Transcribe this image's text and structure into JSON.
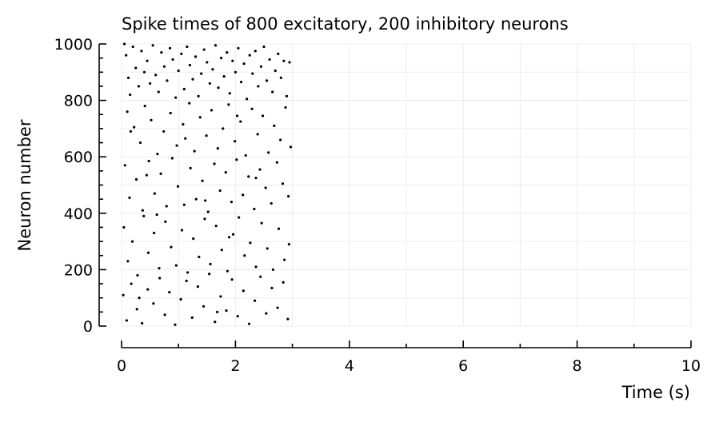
{
  "chart_data": {
    "type": "scatter",
    "title": "Spike times of 800 excitatory, 200 inhibitory neurons",
    "xlabel": "Time (s)",
    "ylabel": "Neuron number",
    "xlim": [
      0,
      10
    ],
    "ylim": [
      0,
      1000
    ],
    "xticks": [
      0,
      2,
      4,
      6,
      8,
      10
    ],
    "yticks": [
      0,
      200,
      400,
      600,
      800,
      1000
    ],
    "grid": true,
    "marker_color": "#000000",
    "series": [
      {
        "values": [
          [
            0.05,
            1000
          ],
          [
            0.08,
            960
          ],
          [
            0.12,
            880
          ],
          [
            0.15,
            820
          ],
          [
            0.2,
            990
          ],
          [
            0.25,
            915
          ],
          [
            0.3,
            850
          ],
          [
            0.35,
            975
          ],
          [
            0.4,
            900
          ],
          [
            0.45,
            940
          ],
          [
            0.5,
            860
          ],
          [
            0.55,
            995
          ],
          [
            0.6,
            890
          ],
          [
            0.65,
            830
          ],
          [
            0.7,
            970
          ],
          [
            0.75,
            920
          ],
          [
            0.8,
            870
          ],
          [
            0.85,
            985
          ],
          [
            0.9,
            945
          ],
          [
            0.95,
            810
          ],
          [
            1.0,
            905
          ],
          [
            1.05,
            965
          ],
          [
            1.1,
            840
          ],
          [
            1.15,
            990
          ],
          [
            1.2,
            925
          ],
          [
            1.25,
            875
          ],
          [
            1.3,
            955
          ],
          [
            1.35,
            815
          ],
          [
            1.4,
            895
          ],
          [
            1.45,
            980
          ],
          [
            1.5,
            935
          ],
          [
            1.55,
            860
          ],
          [
            1.6,
            910
          ],
          [
            1.65,
            995
          ],
          [
            1.7,
            845
          ],
          [
            1.75,
            950
          ],
          [
            1.8,
            885
          ],
          [
            1.85,
            970
          ],
          [
            1.9,
            825
          ],
          [
            1.95,
            940
          ],
          [
            2.0,
            900
          ],
          [
            2.05,
            985
          ],
          [
            2.1,
            865
          ],
          [
            2.15,
            930
          ],
          [
            2.2,
            805
          ],
          [
            2.25,
            960
          ],
          [
            2.3,
            895
          ],
          [
            2.35,
            975
          ],
          [
            2.4,
            850
          ],
          [
            2.45,
            920
          ],
          [
            2.5,
            990
          ],
          [
            2.55,
            870
          ],
          [
            2.6,
            945
          ],
          [
            2.65,
            830
          ],
          [
            2.7,
            905
          ],
          [
            2.75,
            965
          ],
          [
            2.8,
            880
          ],
          [
            2.85,
            940
          ],
          [
            2.9,
            815
          ],
          [
            2.95,
            935
          ],
          [
            0.1,
            760
          ],
          [
            0.22,
            705
          ],
          [
            0.33,
            650
          ],
          [
            0.41,
            780
          ],
          [
            0.52,
            730
          ],
          [
            0.63,
            610
          ],
          [
            0.74,
            690
          ],
          [
            0.86,
            755
          ],
          [
            0.97,
            640
          ],
          [
            1.08,
            715
          ],
          [
            1.19,
            790
          ],
          [
            1.28,
            620
          ],
          [
            1.38,
            740
          ],
          [
            1.49,
            675
          ],
          [
            1.58,
            765
          ],
          [
            1.69,
            630
          ],
          [
            1.78,
            700
          ],
          [
            1.88,
            785
          ],
          [
            1.99,
            655
          ],
          [
            2.09,
            725
          ],
          [
            2.18,
            605
          ],
          [
            2.29,
            770
          ],
          [
            2.39,
            680
          ],
          [
            2.48,
            745
          ],
          [
            2.58,
            615
          ],
          [
            2.68,
            710
          ],
          [
            2.79,
            660
          ],
          [
            2.88,
            775
          ],
          [
            2.97,
            635
          ],
          [
            0.16,
            690
          ],
          [
            1.12,
            665
          ],
          [
            2.03,
            745
          ],
          [
            0.06,
            570
          ],
          [
            0.14,
            455
          ],
          [
            0.26,
            520
          ],
          [
            0.37,
            410
          ],
          [
            0.48,
            585
          ],
          [
            0.58,
            470
          ],
          [
            0.69,
            540
          ],
          [
            0.79,
            425
          ],
          [
            0.89,
            595
          ],
          [
            0.99,
            495
          ],
          [
            1.1,
            430
          ],
          [
            1.21,
            560
          ],
          [
            1.31,
            450
          ],
          [
            1.42,
            515
          ],
          [
            1.52,
            405
          ],
          [
            1.63,
            575
          ],
          [
            1.73,
            480
          ],
          [
            1.83,
            545
          ],
          [
            1.93,
            440
          ],
          [
            2.02,
            590
          ],
          [
            2.13,
            465
          ],
          [
            2.23,
            530
          ],
          [
            2.33,
            415
          ],
          [
            2.43,
            555
          ],
          [
            2.53,
            490
          ],
          [
            2.63,
            435
          ],
          [
            2.73,
            580
          ],
          [
            2.83,
            505
          ],
          [
            2.93,
            460
          ],
          [
            0.44,
            535
          ],
          [
            1.47,
            445
          ],
          [
            2.36,
            525
          ],
          [
            0.04,
            350
          ],
          [
            0.11,
            230
          ],
          [
            0.19,
            300
          ],
          [
            0.28,
            180
          ],
          [
            0.39,
            390
          ],
          [
            0.47,
            260
          ],
          [
            0.57,
            330
          ],
          [
            0.66,
            205
          ],
          [
            0.77,
            370
          ],
          [
            0.87,
            280
          ],
          [
            0.96,
            215
          ],
          [
            1.06,
            340
          ],
          [
            1.16,
            190
          ],
          [
            1.26,
            310
          ],
          [
            1.36,
            245
          ],
          [
            1.46,
            380
          ],
          [
            1.56,
            220
          ],
          [
            1.66,
            355
          ],
          [
            1.76,
            270
          ],
          [
            1.86,
            195
          ],
          [
            1.96,
            325
          ],
          [
            2.06,
            385
          ],
          [
            2.16,
            250
          ],
          [
            2.26,
            295
          ],
          [
            2.36,
            210
          ],
          [
            2.46,
            365
          ],
          [
            2.56,
            275
          ],
          [
            2.66,
            200
          ],
          [
            2.76,
            345
          ],
          [
            2.86,
            235
          ],
          [
            2.94,
            290
          ],
          [
            0.62,
            395
          ],
          [
            1.89,
            315
          ],
          [
            0.03,
            110
          ],
          [
            0.09,
            20
          ],
          [
            0.17,
            150
          ],
          [
            0.27,
            60
          ],
          [
            0.36,
            10
          ],
          [
            0.46,
            130
          ],
          [
            0.56,
            80
          ],
          [
            0.67,
            170
          ],
          [
            0.76,
            40
          ],
          [
            0.84,
            120
          ],
          [
            0.94,
            5
          ],
          [
            1.04,
            95
          ],
          [
            1.14,
            160
          ],
          [
            1.24,
            30
          ],
          [
            1.34,
            140
          ],
          [
            1.44,
            70
          ],
          [
            1.54,
            185
          ],
          [
            1.64,
            15
          ],
          [
            1.74,
            105
          ],
          [
            1.84,
            55
          ],
          [
            1.94,
            165
          ],
          [
            2.04,
            35
          ],
          [
            2.14,
            125
          ],
          [
            2.24,
            8
          ],
          [
            2.34,
            90
          ],
          [
            2.44,
            175
          ],
          [
            2.54,
            45
          ],
          [
            2.64,
            135
          ],
          [
            2.74,
            65
          ],
          [
            2.84,
            155
          ],
          [
            2.92,
            25
          ],
          [
            0.31,
            100
          ],
          [
            1.68,
            50
          ]
        ]
      }
    ]
  }
}
